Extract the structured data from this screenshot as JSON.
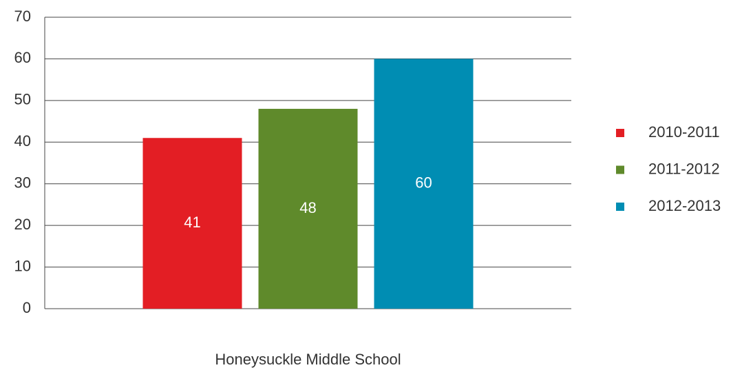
{
  "chart_data": {
    "type": "bar",
    "categories": [
      "Honeysuckle Middle School"
    ],
    "series": [
      {
        "name": "2010-2011",
        "color": "#e31e24",
        "values": [
          41
        ]
      },
      {
        "name": "2011-2012",
        "color": "#5f8a2b",
        "values": [
          48
        ]
      },
      {
        "name": "2012-2013",
        "color": "#008db3",
        "values": [
          60
        ]
      }
    ],
    "ylim": [
      0,
      70
    ],
    "yticks": [
      0,
      10,
      20,
      30,
      40,
      50,
      60,
      70
    ],
    "grid": true,
    "legend": "right"
  }
}
